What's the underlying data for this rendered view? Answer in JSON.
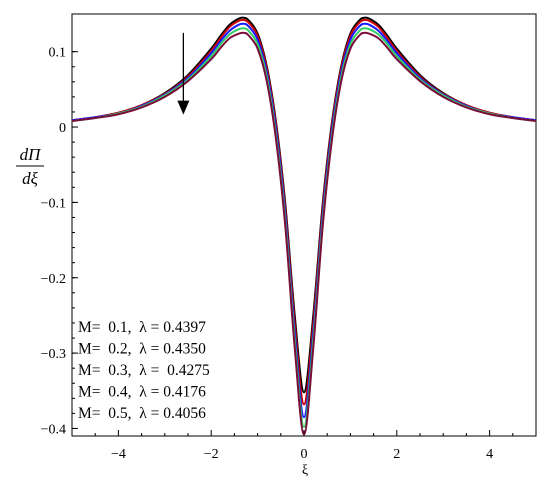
{
  "chart_data": {
    "type": "line",
    "xlabel": "ξ",
    "ylabel_numerator": "dΠ",
    "ylabel_denominator": "dξ",
    "xlim": [
      -5,
      5
    ],
    "ylim": [
      -0.41,
      0.15
    ],
    "x_ticks": [
      -4,
      -2,
      0,
      2,
      4
    ],
    "x_tick_labels": [
      "−4",
      "−2",
      "0",
      "2",
      "4"
    ],
    "y_ticks": [
      0.1,
      0,
      -0.1,
      -0.2,
      -0.3,
      -0.4
    ],
    "y_tick_labels": [
      "0.1",
      "0",
      "−0.1",
      "−0.2",
      "−0.3",
      "−0.4"
    ],
    "grid": false,
    "legend_position": "bottom-left",
    "annotation": "downward arrow near x ≈ -2.6 indicating decreasing peak with increasing M",
    "x": [
      -5,
      -4.5,
      -4,
      -3.5,
      -3,
      -2.5,
      -2,
      -1.8,
      -1.6,
      -1.4,
      -1.3,
      -1.2,
      -1.0,
      -0.8,
      -0.6,
      -0.4,
      -0.2,
      0,
      0.2,
      0.4,
      0.6,
      0.8,
      1.0,
      1.2,
      1.3,
      1.4,
      1.6,
      1.8,
      2,
      2.5,
      3,
      3.5,
      4,
      4.5,
      5
    ],
    "series": [
      {
        "color": "#000000",
        "legend_label": "M=  0.1,  λ = 0.4397",
        "values": [
          0.009,
          0.013,
          0.019,
          0.029,
          0.045,
          0.069,
          0.104,
          0.121,
          0.136,
          0.144,
          0.145,
          0.142,
          0.124,
          0.08,
          0.005,
          -0.104,
          -0.25,
          -0.352,
          -0.25,
          -0.104,
          0.005,
          0.08,
          0.124,
          0.142,
          0.145,
          0.144,
          0.136,
          0.121,
          0.104,
          0.069,
          0.045,
          0.029,
          0.019,
          0.013,
          0.009
        ]
      },
      {
        "color": "#cc0000",
        "legend_label": "M=  0.2,  λ = 0.4350",
        "values": [
          0.009,
          0.013,
          0.019,
          0.029,
          0.044,
          0.067,
          0.101,
          0.118,
          0.133,
          0.141,
          0.142,
          0.139,
          0.121,
          0.077,
          0.001,
          -0.11,
          -0.26,
          -0.368,
          -0.26,
          -0.11,
          0.001,
          0.077,
          0.121,
          0.139,
          0.142,
          0.141,
          0.133,
          0.118,
          0.101,
          0.067,
          0.044,
          0.029,
          0.019,
          0.013,
          0.009
        ]
      },
      {
        "color": "#1a1aff",
        "legend_label": "M=  0.3,  λ =  0.4275",
        "values": [
          0.009,
          0.013,
          0.018,
          0.028,
          0.043,
          0.065,
          0.098,
          0.114,
          0.128,
          0.136,
          0.137,
          0.134,
          0.116,
          0.072,
          -0.005,
          -0.118,
          -0.272,
          -0.385,
          -0.272,
          -0.118,
          -0.005,
          0.072,
          0.116,
          0.134,
          0.137,
          0.136,
          0.128,
          0.114,
          0.098,
          0.065,
          0.043,
          0.028,
          0.018,
          0.013,
          0.009
        ]
      },
      {
        "color": "#33cc66",
        "legend_label": "M=  0.4,  λ = 0.4176",
        "values": [
          0.008,
          0.012,
          0.018,
          0.027,
          0.042,
          0.063,
          0.094,
          0.11,
          0.123,
          0.13,
          0.131,
          0.128,
          0.11,
          0.066,
          -0.012,
          -0.126,
          -0.283,
          -0.398,
          -0.283,
          -0.126,
          -0.012,
          0.066,
          0.11,
          0.128,
          0.131,
          0.13,
          0.123,
          0.11,
          0.094,
          0.063,
          0.042,
          0.027,
          0.018,
          0.012,
          0.008
        ]
      },
      {
        "color": "#7a0d3a",
        "legend_label": "M=  0.5,  λ = 0.4056",
        "values": [
          0.008,
          0.012,
          0.017,
          0.026,
          0.04,
          0.061,
          0.09,
          0.105,
          0.118,
          0.124,
          0.125,
          0.122,
          0.104,
          0.06,
          -0.018,
          -0.134,
          -0.293,
          -0.408,
          -0.293,
          -0.134,
          -0.018,
          0.06,
          0.104,
          0.122,
          0.125,
          0.124,
          0.118,
          0.105,
          0.09,
          0.061,
          0.04,
          0.026,
          0.017,
          0.012,
          0.008
        ]
      }
    ]
  }
}
